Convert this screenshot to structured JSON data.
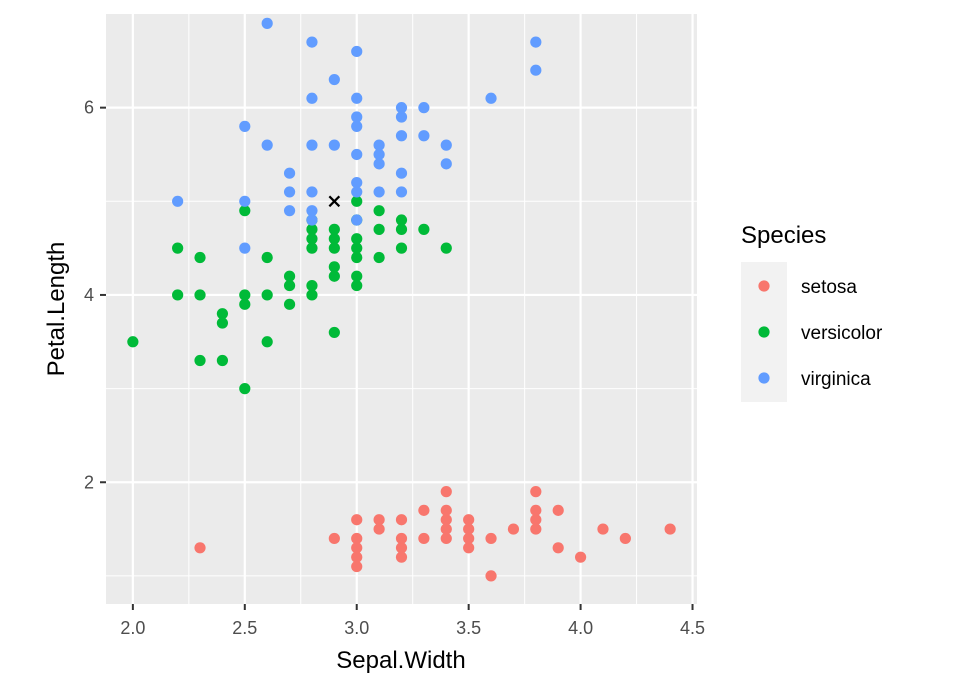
{
  "chart_data": {
    "type": "scatter",
    "xlabel": "Sepal.Width",
    "ylabel": "Petal.Length",
    "xlim": [
      1.88,
      4.52
    ],
    "ylim": [
      0.7,
      7.0
    ],
    "x_ticks": [
      "2.0",
      "2.5",
      "3.0",
      "3.5",
      "4.0",
      "4.5"
    ],
    "y_ticks": [
      "2",
      "4",
      "6"
    ],
    "grid": true,
    "legend": {
      "title": "Species",
      "position": "right"
    },
    "series": [
      {
        "name": "setosa",
        "color": "#F8766D",
        "points": [
          [
            2.3,
            1.3
          ],
          [
            2.9,
            1.4
          ],
          [
            3.0,
            1.1
          ],
          [
            3.0,
            1.2
          ],
          [
            3.0,
            1.3
          ],
          [
            3.0,
            1.4
          ],
          [
            3.0,
            1.6
          ],
          [
            3.1,
            1.5
          ],
          [
            3.1,
            1.6
          ],
          [
            3.2,
            1.2
          ],
          [
            3.2,
            1.3
          ],
          [
            3.2,
            1.4
          ],
          [
            3.2,
            1.6
          ],
          [
            3.3,
            1.4
          ],
          [
            3.3,
            1.7
          ],
          [
            3.4,
            1.4
          ],
          [
            3.4,
            1.5
          ],
          [
            3.4,
            1.6
          ],
          [
            3.4,
            1.7
          ],
          [
            3.4,
            1.9
          ],
          [
            3.5,
            1.3
          ],
          [
            3.5,
            1.4
          ],
          [
            3.5,
            1.5
          ],
          [
            3.5,
            1.6
          ],
          [
            3.6,
            1.0
          ],
          [
            3.6,
            1.4
          ],
          [
            3.7,
            1.5
          ],
          [
            3.8,
            1.5
          ],
          [
            3.8,
            1.6
          ],
          [
            3.8,
            1.7
          ],
          [
            3.8,
            1.9
          ],
          [
            3.9,
            1.3
          ],
          [
            3.9,
            1.7
          ],
          [
            4.0,
            1.2
          ],
          [
            4.1,
            1.5
          ],
          [
            4.2,
            1.4
          ],
          [
            4.4,
            1.5
          ]
        ]
      },
      {
        "name": "versicolor",
        "color": "#00BA38",
        "points": [
          [
            2.0,
            3.5
          ],
          [
            2.2,
            4.0
          ],
          [
            2.2,
            4.5
          ],
          [
            2.3,
            3.3
          ],
          [
            2.3,
            4.0
          ],
          [
            2.3,
            4.4
          ],
          [
            2.4,
            3.3
          ],
          [
            2.4,
            3.7
          ],
          [
            2.4,
            3.8
          ],
          [
            2.5,
            3.0
          ],
          [
            2.5,
            3.9
          ],
          [
            2.5,
            4.0
          ],
          [
            2.5,
            4.9
          ],
          [
            2.6,
            3.5
          ],
          [
            2.6,
            4.0
          ],
          [
            2.6,
            4.4
          ],
          [
            2.7,
            3.9
          ],
          [
            2.7,
            4.1
          ],
          [
            2.7,
            4.2
          ],
          [
            2.8,
            4.0
          ],
          [
            2.8,
            4.1
          ],
          [
            2.8,
            4.5
          ],
          [
            2.8,
            4.6
          ],
          [
            2.8,
            4.7
          ],
          [
            2.8,
            4.8
          ],
          [
            2.9,
            3.6
          ],
          [
            2.9,
            4.2
          ],
          [
            2.9,
            4.3
          ],
          [
            2.9,
            4.5
          ],
          [
            2.9,
            4.6
          ],
          [
            2.9,
            4.7
          ],
          [
            3.0,
            4.1
          ],
          [
            3.0,
            4.2
          ],
          [
            3.0,
            4.4
          ],
          [
            3.0,
            4.5
          ],
          [
            3.0,
            4.6
          ],
          [
            3.0,
            4.8
          ],
          [
            3.0,
            5.0
          ],
          [
            3.1,
            4.4
          ],
          [
            3.1,
            4.7
          ],
          [
            3.1,
            4.9
          ],
          [
            3.2,
            4.5
          ],
          [
            3.2,
            4.7
          ],
          [
            3.2,
            4.8
          ],
          [
            3.3,
            4.7
          ],
          [
            3.4,
            4.5
          ]
        ]
      },
      {
        "name": "virginica",
        "color": "#619CFF",
        "points": [
          [
            2.2,
            5.0
          ],
          [
            2.5,
            4.5
          ],
          [
            2.5,
            5.0
          ],
          [
            2.5,
            5.8
          ],
          [
            2.6,
            5.6
          ],
          [
            2.6,
            6.9
          ],
          [
            2.7,
            4.9
          ],
          [
            2.7,
            5.1
          ],
          [
            2.7,
            5.3
          ],
          [
            2.8,
            4.8
          ],
          [
            2.8,
            4.9
          ],
          [
            2.8,
            5.1
          ],
          [
            2.8,
            5.6
          ],
          [
            2.8,
            6.1
          ],
          [
            2.8,
            6.7
          ],
          [
            2.9,
            5.6
          ],
          [
            2.9,
            6.3
          ],
          [
            3.0,
            4.8
          ],
          [
            3.0,
            5.1
          ],
          [
            3.0,
            5.2
          ],
          [
            3.0,
            5.5
          ],
          [
            3.0,
            5.8
          ],
          [
            3.0,
            5.9
          ],
          [
            3.0,
            6.1
          ],
          [
            3.0,
            6.6
          ],
          [
            3.1,
            5.1
          ],
          [
            3.1,
            5.4
          ],
          [
            3.1,
            5.5
          ],
          [
            3.1,
            5.6
          ],
          [
            3.2,
            5.1
          ],
          [
            3.2,
            5.3
          ],
          [
            3.2,
            5.7
          ],
          [
            3.2,
            5.9
          ],
          [
            3.2,
            6.0
          ],
          [
            3.3,
            5.7
          ],
          [
            3.3,
            6.0
          ],
          [
            3.4,
            5.4
          ],
          [
            3.4,
            5.6
          ],
          [
            3.6,
            6.1
          ],
          [
            3.8,
            6.4
          ],
          [
            3.8,
            6.7
          ]
        ]
      }
    ],
    "annotations": [
      {
        "marker": "x",
        "x": 2.9,
        "y": 5.0,
        "color": "#000000"
      }
    ]
  }
}
